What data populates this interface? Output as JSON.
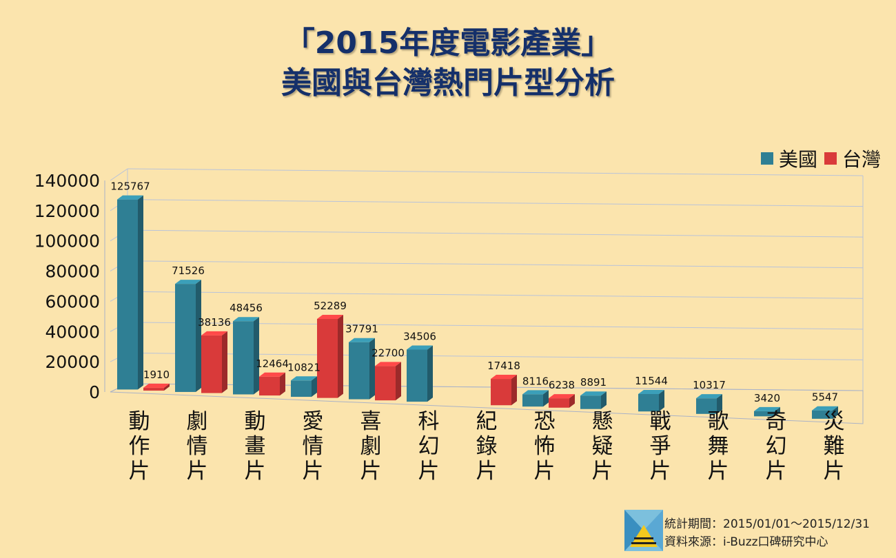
{
  "title_line1": "「2015年度電影產業」",
  "title_line2": "美國與台灣熱門片型分析",
  "legend": {
    "us": "美國",
    "tw": "台灣"
  },
  "footer": {
    "period": "統計期間：2015/01/01～2015/12/31",
    "source": "資料來源：i-Buzz口碑研究中心"
  },
  "colors": {
    "us": "#2f7f94",
    "tw": "#d93a3a",
    "background": "#fbe4ad"
  },
  "chart_data": {
    "type": "bar",
    "title": "「2015年度電影產業」美國與台灣熱門片型分析",
    "categories": [
      "動作片",
      "劇情片",
      "動畫片",
      "愛情片",
      "喜劇片",
      "科幻片",
      "紀錄片",
      "恐怖片",
      "懸疑片",
      "戰爭片",
      "歌舞片",
      "奇幻片",
      "災難片"
    ],
    "series": [
      {
        "name": "美國",
        "values": [
          125767,
          71526,
          48456,
          10821,
          37791,
          34506,
          null,
          8116,
          8891,
          11544,
          10317,
          3420,
          5547
        ]
      },
      {
        "name": "台灣",
        "values": [
          1910,
          38136,
          12464,
          52289,
          22700,
          null,
          17418,
          6238,
          null,
          null,
          null,
          null,
          null
        ]
      }
    ],
    "yticks": [
      "0",
      "20000",
      "40000",
      "60000",
      "80000",
      "100000",
      "120000",
      "140000"
    ],
    "ylim": [
      0,
      140000
    ],
    "legend_position": "top-right",
    "grid": true
  }
}
